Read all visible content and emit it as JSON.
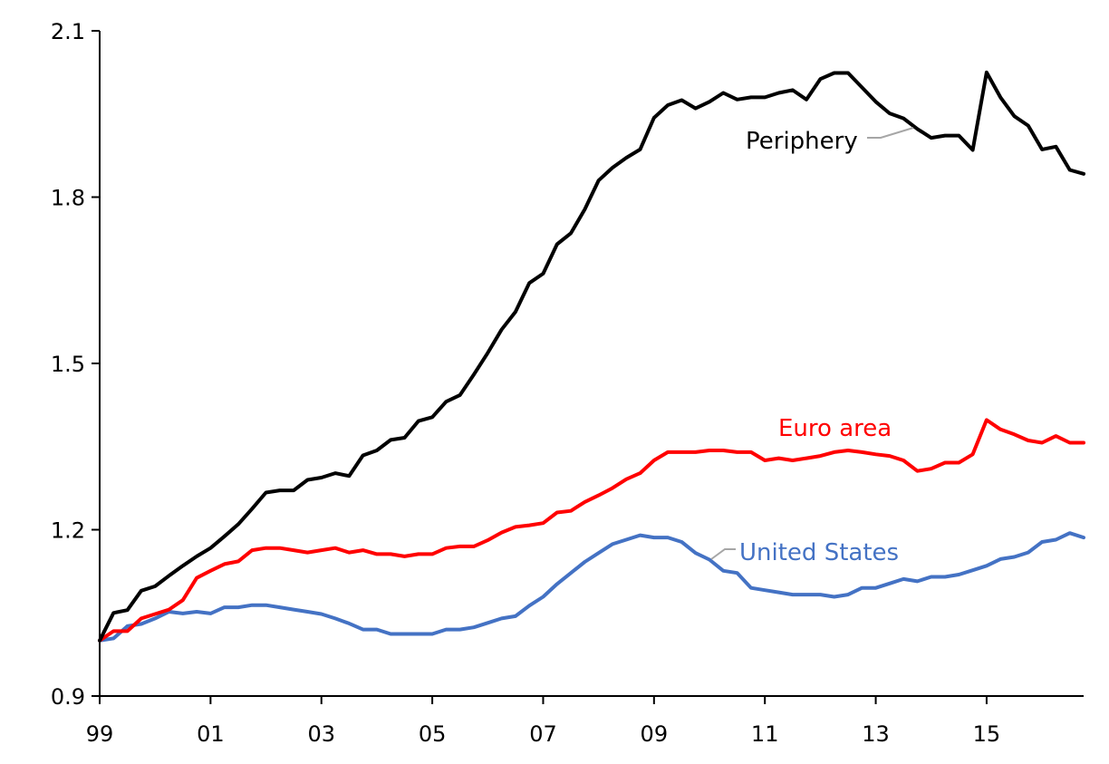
{
  "chart_data": {
    "type": "line",
    "title": "",
    "xlabel": "",
    "ylabel": "",
    "ylim": [
      0.9,
      2.1
    ],
    "xlim": [
      1999.0,
      2016.75
    ],
    "x_tick_labels": [
      "99",
      "01",
      "03",
      "05",
      "07",
      "09",
      "11",
      "13",
      "15"
    ],
    "x_tick_values": [
      1999,
      2001,
      2003,
      2005,
      2007,
      2009,
      2011,
      2013,
      2015
    ],
    "y_tick_labels": [
      "0.9",
      "1.2",
      "1.5",
      "1.8",
      "2.1"
    ],
    "y_tick_values": [
      0.9,
      1.2,
      1.5,
      1.8,
      2.1
    ],
    "grid": false,
    "legend": "inline labels",
    "x": [
      1999.0,
      1999.25,
      1999.5,
      1999.75,
      2000.0,
      2000.25,
      2000.5,
      2000.75,
      2001.0,
      2001.25,
      2001.5,
      2001.75,
      2002.0,
      2002.25,
      2002.5,
      2002.75,
      2003.0,
      2003.25,
      2003.5,
      2003.75,
      2004.0,
      2004.25,
      2004.5,
      2004.75,
      2005.0,
      2005.25,
      2005.5,
      2005.75,
      2006.0,
      2006.25,
      2006.5,
      2006.75,
      2007.0,
      2007.25,
      2007.5,
      2007.75,
      2008.0,
      2008.25,
      2008.5,
      2008.75,
      2009.0,
      2009.25,
      2009.5,
      2009.75,
      2010.0,
      2010.25,
      2010.5,
      2010.75,
      2011.0,
      2011.25,
      2011.5,
      2011.75,
      2012.0,
      2012.25,
      2012.5,
      2012.75,
      2013.0,
      2013.25,
      2013.5,
      2013.75,
      2014.0,
      2014.25,
      2014.5,
      2014.75,
      2015.0,
      2015.25,
      2015.5,
      2015.75,
      2016.0,
      2016.25,
      2016.5,
      2016.75
    ],
    "series": [
      {
        "name": "Periphery",
        "color": "#000000",
        "values": [
          1.0,
          1.05,
          1.055,
          1.09,
          1.098,
          1.117,
          1.135,
          1.152,
          1.167,
          1.188,
          1.21,
          1.238,
          1.267,
          1.271,
          1.271,
          1.29,
          1.294,
          1.302,
          1.297,
          1.334,
          1.343,
          1.362,
          1.366,
          1.396,
          1.403,
          1.431,
          1.443,
          1.48,
          1.519,
          1.561,
          1.593,
          1.645,
          1.662,
          1.715,
          1.735,
          1.778,
          1.83,
          1.853,
          1.871,
          1.886,
          1.943,
          1.966,
          1.975,
          1.96,
          1.972,
          1.988,
          1.976,
          1.98,
          1.98,
          1.988,
          1.993,
          1.976,
          2.013,
          2.024,
          2.024,
          1.998,
          1.972,
          1.951,
          1.942,
          1.923,
          1.907,
          1.911,
          1.911,
          1.885,
          2.025,
          1.98,
          1.946,
          1.929,
          1.886,
          1.891,
          1.849,
          1.842
        ]
      },
      {
        "name": "Euro area",
        "color": "#ff0000",
        "values": [
          1.0,
          1.017,
          1.017,
          1.04,
          1.048,
          1.056,
          1.073,
          1.113,
          1.126,
          1.138,
          1.143,
          1.163,
          1.167,
          1.167,
          1.163,
          1.159,
          1.163,
          1.167,
          1.159,
          1.163,
          1.156,
          1.156,
          1.152,
          1.156,
          1.156,
          1.167,
          1.17,
          1.17,
          1.181,
          1.195,
          1.205,
          1.208,
          1.212,
          1.231,
          1.234,
          1.25,
          1.262,
          1.275,
          1.291,
          1.302,
          1.325,
          1.34,
          1.34,
          1.34,
          1.343,
          1.343,
          1.34,
          1.34,
          1.325,
          1.329,
          1.325,
          1.329,
          1.333,
          1.34,
          1.343,
          1.34,
          1.336,
          1.333,
          1.325,
          1.306,
          1.31,
          1.321,
          1.321,
          1.336,
          1.398,
          1.381,
          1.372,
          1.361,
          1.357,
          1.369,
          1.357,
          1.357
        ]
      },
      {
        "name": "United States",
        "color": "#4472c4",
        "values": [
          1.0,
          1.004,
          1.026,
          1.03,
          1.04,
          1.052,
          1.049,
          1.052,
          1.049,
          1.06,
          1.06,
          1.064,
          1.064,
          1.06,
          1.056,
          1.052,
          1.048,
          1.04,
          1.031,
          1.02,
          1.02,
          1.012,
          1.012,
          1.012,
          1.012,
          1.02,
          1.02,
          1.024,
          1.032,
          1.04,
          1.044,
          1.063,
          1.079,
          1.102,
          1.122,
          1.142,
          1.158,
          1.174,
          1.182,
          1.19,
          1.186,
          1.186,
          1.178,
          1.158,
          1.146,
          1.126,
          1.122,
          1.095,
          1.091,
          1.087,
          1.083,
          1.083,
          1.083,
          1.079,
          1.083,
          1.095,
          1.095,
          1.103,
          1.111,
          1.107,
          1.115,
          1.115,
          1.119,
          1.127,
          1.135,
          1.147,
          1.151,
          1.159,
          1.178,
          1.182,
          1.194,
          1.186
        ]
      }
    ],
    "annotations": [
      {
        "series": "Periphery",
        "text": "Periphery"
      },
      {
        "series": "Euro area",
        "text": "Euro area"
      },
      {
        "series": "United States",
        "text": "United States"
      }
    ]
  }
}
